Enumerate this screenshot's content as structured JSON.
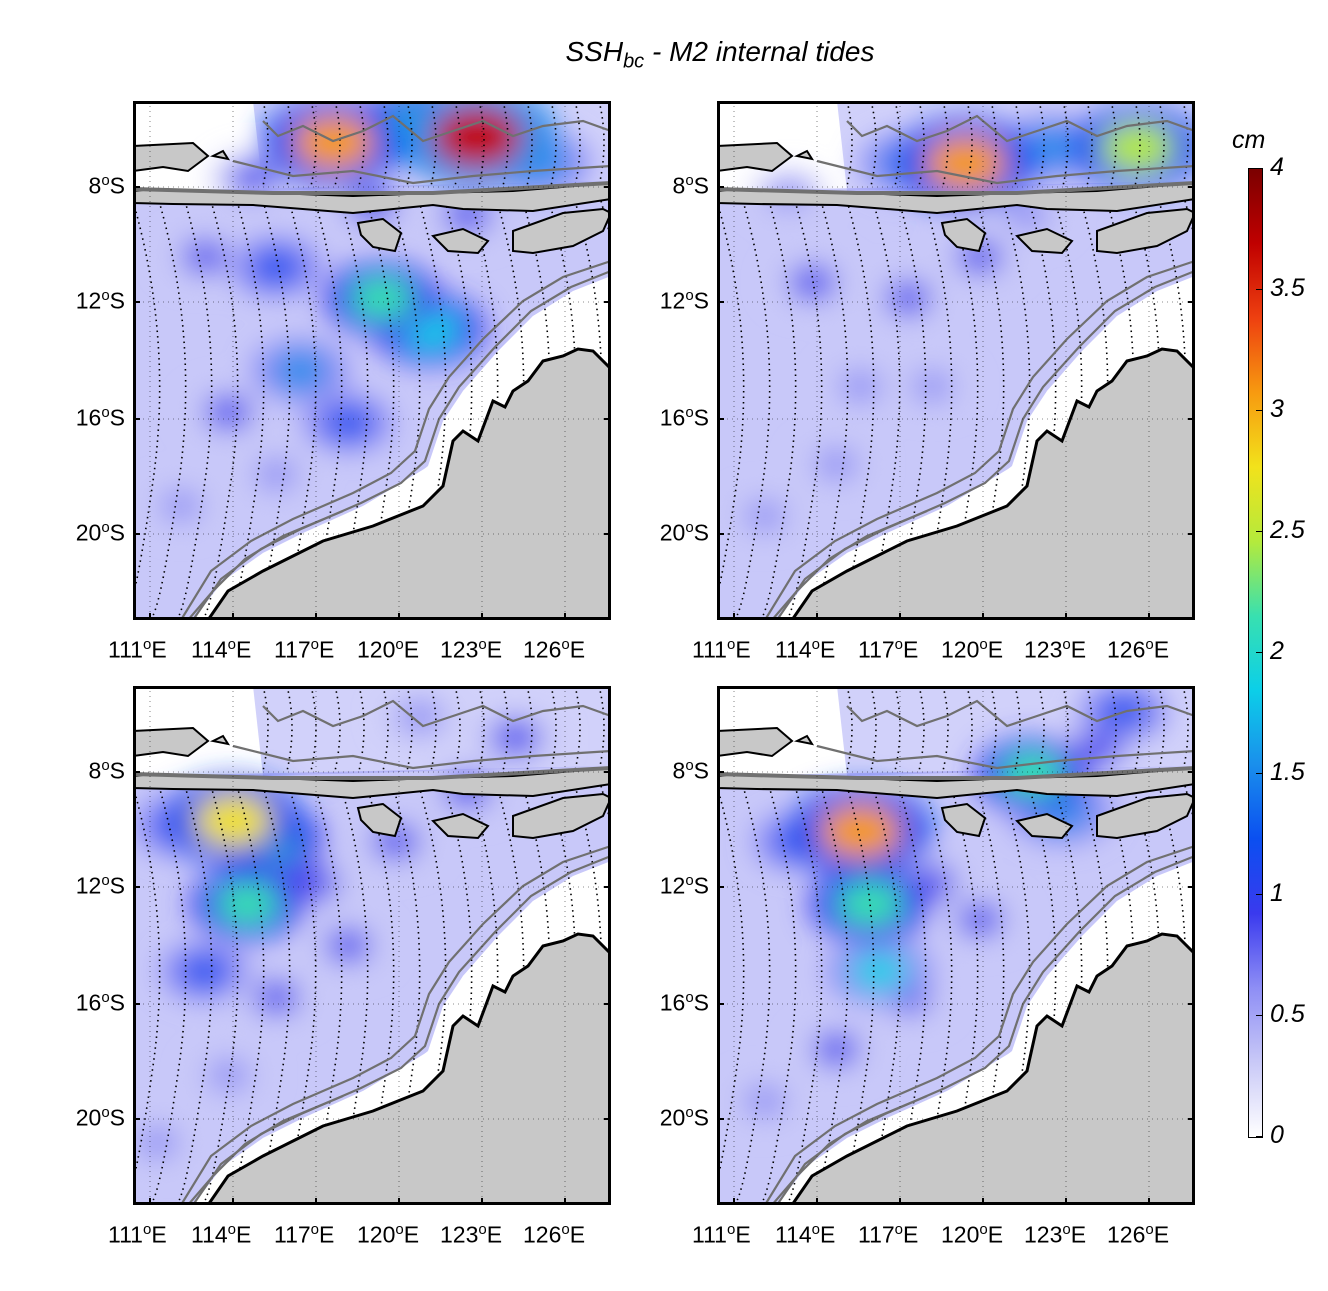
{
  "title": {
    "main": "SSH",
    "sub": "bc",
    "rest": " - M2 internal tides"
  },
  "colorbar": {
    "unit": "cm",
    "ticks": [
      "0",
      "0.5",
      "1",
      "1.5",
      "2",
      "2.5",
      "3",
      "3.5",
      "4"
    ],
    "range": [
      0,
      4
    ],
    "colormap": [
      "#ffffff",
      "#c9c9f7",
      "#8e8ef5",
      "#3a3aee",
      "#0b4ff0",
      "#1a8fec",
      "#0ccfe8",
      "#38e0b0",
      "#b4ea3c",
      "#f2e21b",
      "#f79a10",
      "#ee4010",
      "#c00000",
      "#7b0000"
    ]
  },
  "axes": {
    "lat_ticks": [
      {
        "value": "8",
        "unit": "o",
        "hemi": "S"
      },
      {
        "value": "12",
        "unit": "o",
        "hemi": "S"
      },
      {
        "value": "16",
        "unit": "o",
        "hemi": "S"
      },
      {
        "value": "20",
        "unit": "o",
        "hemi": "S"
      }
    ],
    "lon_ticks": [
      {
        "value": "111",
        "unit": "o",
        "hemi": "E"
      },
      {
        "value": "114",
        "unit": "o",
        "hemi": "E"
      },
      {
        "value": "117",
        "unit": "o",
        "hemi": "E"
      },
      {
        "value": "120",
        "unit": "o",
        "hemi": "E"
      },
      {
        "value": "123",
        "unit": "o",
        "hemi": "E"
      },
      {
        "value": "126",
        "unit": "o",
        "hemi": "E"
      }
    ]
  },
  "colors": {
    "land": "#c8c8c8",
    "coast": "#000000",
    "isobath": "#707070",
    "frame": "#000000"
  },
  "panels": [
    {
      "id": "top-left",
      "blobs": [
        [
          0.42,
          0.08,
          3.0
        ],
        [
          0.72,
          0.07,
          3.6
        ],
        [
          0.6,
          0.05,
          2.2
        ],
        [
          0.52,
          0.38,
          2.0
        ],
        [
          0.62,
          0.44,
          1.9
        ],
        [
          0.3,
          0.32,
          1.2
        ],
        [
          0.15,
          0.3,
          0.8
        ],
        [
          0.35,
          0.52,
          1.4
        ],
        [
          0.45,
          0.62,
          1.1
        ],
        [
          0.2,
          0.6,
          0.9
        ],
        [
          0.1,
          0.78,
          0.6
        ],
        [
          0.3,
          0.72,
          0.7
        ],
        [
          0.7,
          0.22,
          0.9
        ],
        [
          0.85,
          0.12,
          1.6
        ],
        [
          0.25,
          0.15,
          0.8
        ],
        [
          0.5,
          0.2,
          1.0
        ]
      ]
    },
    {
      "id": "top-right",
      "blobs": [
        [
          0.52,
          0.12,
          3.0
        ],
        [
          0.88,
          0.09,
          2.6
        ],
        [
          0.7,
          0.09,
          1.6
        ],
        [
          0.4,
          0.12,
          1.4
        ],
        [
          0.2,
          0.35,
          0.9
        ],
        [
          0.4,
          0.38,
          0.8
        ],
        [
          0.55,
          0.3,
          0.8
        ],
        [
          0.3,
          0.55,
          0.7
        ],
        [
          0.1,
          0.8,
          0.6
        ],
        [
          0.25,
          0.7,
          0.7
        ],
        [
          0.65,
          0.22,
          0.7
        ],
        [
          0.15,
          0.18,
          0.5
        ],
        [
          0.45,
          0.55,
          0.6
        ]
      ]
    },
    {
      "id": "bottom-left",
      "blobs": [
        [
          0.21,
          0.26,
          2.8
        ],
        [
          0.28,
          0.3,
          2.0
        ],
        [
          0.24,
          0.42,
          2.0
        ],
        [
          0.1,
          0.27,
          1.3
        ],
        [
          0.38,
          0.38,
          1.0
        ],
        [
          0.55,
          0.3,
          0.9
        ],
        [
          0.15,
          0.55,
          1.1
        ],
        [
          0.3,
          0.6,
          0.8
        ],
        [
          0.05,
          0.88,
          0.7
        ],
        [
          0.45,
          0.5,
          0.8
        ],
        [
          0.7,
          0.2,
          0.9
        ],
        [
          0.2,
          0.75,
          0.7
        ],
        [
          0.8,
          0.1,
          1.0
        ],
        [
          0.6,
          0.06,
          0.7
        ]
      ]
    },
    {
      "id": "bottom-right",
      "blobs": [
        [
          0.3,
          0.28,
          3.0
        ],
        [
          0.32,
          0.42,
          2.2
        ],
        [
          0.34,
          0.55,
          1.7
        ],
        [
          0.66,
          0.17,
          2.0
        ],
        [
          0.72,
          0.24,
          1.6
        ],
        [
          0.17,
          0.3,
          1.1
        ],
        [
          0.45,
          0.38,
          0.9
        ],
        [
          0.25,
          0.7,
          0.8
        ],
        [
          0.1,
          0.8,
          0.7
        ],
        [
          0.55,
          0.45,
          0.8
        ],
        [
          0.8,
          0.12,
          0.9
        ],
        [
          0.4,
          0.6,
          0.8
        ],
        [
          0.85,
          0.05,
          1.1
        ]
      ]
    }
  ]
}
